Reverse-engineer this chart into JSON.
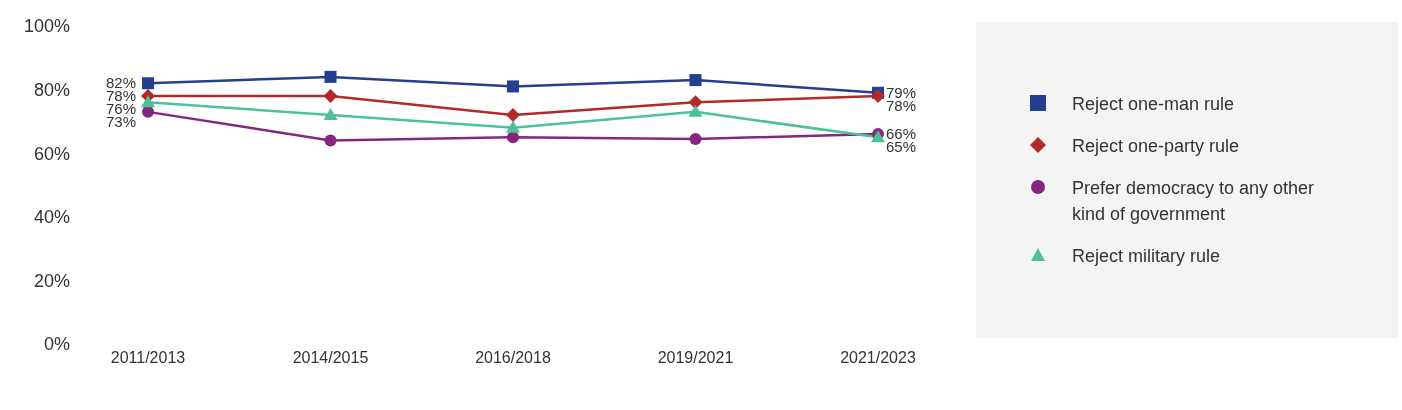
{
  "chart_data": {
    "type": "line",
    "categories": [
      "2011/2013",
      "2014/2015",
      "2016/2018",
      "2019/2021",
      "2021/2023"
    ],
    "ylim": [
      0,
      100
    ],
    "yticks": [
      {
        "value": 0,
        "label": "0%"
      },
      {
        "value": 20,
        "label": "20%"
      },
      {
        "value": 40,
        "label": "40%"
      },
      {
        "value": 60,
        "label": "60%"
      },
      {
        "value": 80,
        "label": "80%"
      },
      {
        "value": 100,
        "label": "100%"
      }
    ],
    "grid": false,
    "legend": "right",
    "line_style": "solid",
    "series": [
      {
        "name": "Reject one-man rule",
        "color": "#243f8f",
        "marker": "square",
        "values": [
          82,
          84,
          81,
          83,
          79
        ],
        "value_labels": [
          "82%",
          null,
          null,
          null,
          "79%"
        ]
      },
      {
        "name": "Reject one-party rule",
        "color": "#b22a2a",
        "marker": "diamond",
        "values": [
          78,
          78,
          72,
          76,
          78
        ],
        "value_labels": [
          "78%",
          null,
          null,
          null,
          "78%"
        ]
      },
      {
        "name": "Prefer democracy to any other kind of government",
        "color": "#85267f",
        "marker": "circle",
        "values": [
          73,
          64,
          65,
          64.5,
          66
        ],
        "value_labels": [
          "73%",
          null,
          null,
          null,
          "66%"
        ]
      },
      {
        "name": "Reject military rule",
        "color": "#4cc19a",
        "marker": "triangle",
        "values": [
          76,
          72,
          68,
          73,
          65
        ],
        "value_labels": [
          "76%",
          null,
          null,
          null,
          "65%"
        ]
      }
    ]
  }
}
